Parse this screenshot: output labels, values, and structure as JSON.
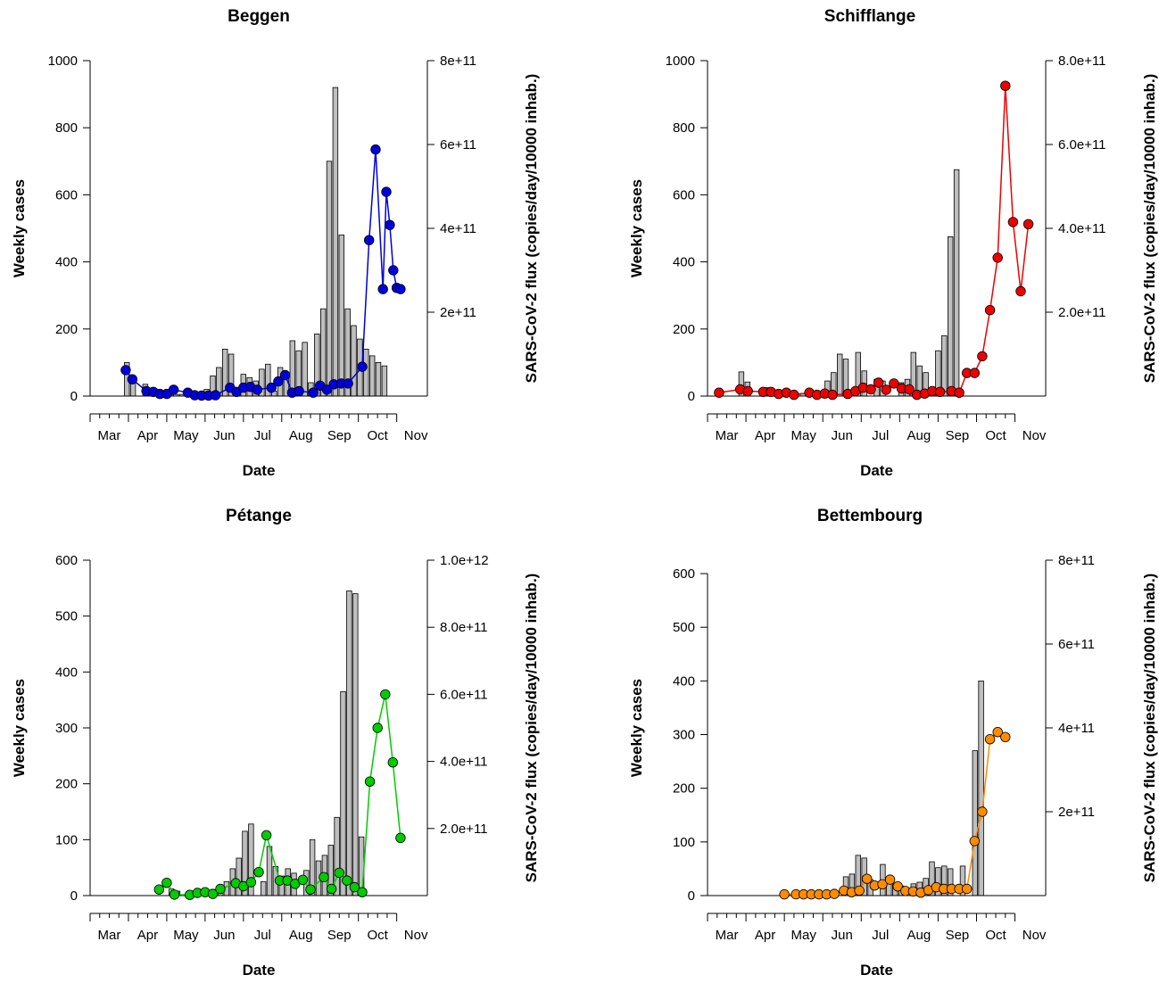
{
  "chart_data": [
    {
      "type": "bar",
      "title": "Beggen",
      "xlabel": "Date",
      "ylabel": "Weekly cases",
      "y2label": "SARS-CoV-2 flux (copies/day/10000 inhab.)",
      "xlim": [
        0,
        8.8
      ],
      "x_ticks": [
        "Mar",
        "Apr",
        "May",
        "Jun",
        "Jul",
        "Aug",
        "Sep",
        "Oct",
        "Nov"
      ],
      "ylim": [
        0,
        1000
      ],
      "y_ticks": [
        0,
        200,
        400,
        600,
        800,
        1000
      ],
      "y2lim": [
        0,
        800000000000.0
      ],
      "y2_ticks": [
        200000000000.0,
        400000000000.0,
        600000000000.0,
        800000000000.0
      ],
      "y2_tick_labels": [
        "2e+11",
        "4e+11",
        "6e+11",
        "8e+11"
      ],
      "bar_color": "#bebebe",
      "line_color": "#0000dd",
      "bars": {
        "name": "Weekly cases",
        "x": [
          0.96,
          1.12,
          1.44,
          1.6,
          1.76,
          1.92,
          2.08,
          2.24,
          2.4,
          2.56,
          2.72,
          2.88,
          3.04,
          3.2,
          3.36,
          3.52,
          3.68,
          3.84,
          4.0,
          4.16,
          4.32,
          4.48,
          4.64,
          4.8,
          4.96,
          5.12,
          5.28,
          5.44,
          5.6,
          5.76,
          5.92,
          6.08,
          6.24,
          6.4,
          6.56,
          6.72,
          6.88,
          7.04,
          7.2,
          7.36,
          7.52,
          7.68
        ],
        "values": [
          100,
          45,
          35,
          20,
          10,
          10,
          15,
          5,
          5,
          5,
          5,
          5,
          20,
          60,
          85,
          140,
          125,
          20,
          65,
          55,
          45,
          80,
          95,
          15,
          85,
          70,
          165,
          135,
          160,
          40,
          185,
          260,
          700,
          920,
          480,
          260,
          210,
          170,
          140,
          120,
          100,
          90
        ]
      },
      "series": [
        {
          "name": "SARS-CoV-2 flux",
          "x": [
            0.93,
            1.1,
            1.47,
            1.65,
            1.82,
            2.0,
            2.18,
            2.55,
            2.73,
            2.91,
            3.09,
            3.27,
            3.65,
            3.82,
            4.0,
            4.18,
            4.36,
            4.73,
            4.91,
            5.09,
            5.27,
            5.45,
            5.82,
            6.0,
            6.18,
            6.36,
            6.55,
            6.73,
            7.1,
            7.28,
            7.45,
            7.64,
            7.73,
            7.82,
            7.91,
            8.0,
            8.1
          ],
          "values": [
            62000000000.0,
            40000000000.0,
            12000000000.0,
            10000000000.0,
            5000000000.0,
            5000000000.0,
            15000000000.0,
            8000000000.0,
            2000000000.0,
            1000000000.0,
            1000000000.0,
            2000000000.0,
            20000000000.0,
            10000000000.0,
            20000000000.0,
            22000000000.0,
            15000000000.0,
            20000000000.0,
            35000000000.0,
            50000000000.0,
            8000000000.0,
            12000000000.0,
            8000000000.0,
            25000000000.0,
            15000000000.0,
            28000000000.0,
            30000000000.0,
            30000000000.0,
            70000000000.0,
            372000000000.0,
            588000000000.0,
            255000000000.0,
            487000000000.0,
            408000000000.0,
            300000000000.0,
            258000000000.0,
            255000000000.0
          ]
        }
      ]
    },
    {
      "type": "bar",
      "title": "Schifflange",
      "xlabel": "Date",
      "ylabel": "Weekly cases",
      "y2label": "SARS-CoV-2 flux (copies/day/10000 inhab.)",
      "xlim": [
        0,
        8.8
      ],
      "x_ticks": [
        "Mar",
        "Apr",
        "May",
        "Jun",
        "Jul",
        "Aug",
        "Sep",
        "Oct",
        "Nov"
      ],
      "ylim": [
        0,
        1000
      ],
      "y_ticks": [
        0,
        200,
        400,
        600,
        800,
        1000
      ],
      "y2lim": [
        0,
        800000000000.0
      ],
      "y2_ticks": [
        200000000000.0,
        400000000000.0,
        600000000000.0,
        800000000000.0
      ],
      "y2_tick_labels": [
        "2.0e+11",
        "4.0e+11",
        "6.0e+11",
        "8.0e+11"
      ],
      "bar_color": "#bebebe",
      "line_color": "#ee0000",
      "bars": {
        "name": "Weekly cases",
        "x": [
          0.88,
          1.04,
          1.52,
          1.68,
          2.16,
          2.48,
          3.12,
          3.28,
          3.44,
          3.6,
          3.92,
          4.08,
          4.4,
          4.56,
          5.04,
          5.2,
          5.36,
          5.52,
          5.68,
          6.0,
          6.16,
          6.32,
          6.48
        ],
        "values": [
          72,
          42,
          25,
          18,
          10,
          8,
          45,
          70,
          125,
          110,
          130,
          75,
          50,
          45,
          40,
          50,
          130,
          90,
          70,
          135,
          180,
          475,
          675
        ]
      },
      "series": [
        {
          "name": "SARS-CoV-2 flux",
          "x": [
            0.3,
            0.85,
            1.05,
            1.45,
            1.65,
            1.85,
            2.05,
            2.25,
            2.65,
            2.85,
            3.05,
            3.25,
            3.65,
            3.85,
            4.05,
            4.25,
            4.45,
            4.65,
            4.85,
            5.05,
            5.25,
            5.45,
            5.65,
            5.85,
            6.05,
            6.35,
            6.55,
            6.75,
            6.95,
            7.15,
            7.35,
            7.55,
            7.75,
            7.95,
            8.15,
            8.35
          ],
          "values": [
            8000000000.0,
            16000000000.0,
            12000000000.0,
            10000000000.0,
            10000000000.0,
            5000000000.0,
            8000000000.0,
            3000000000.0,
            8000000000.0,
            3000000000.0,
            6000000000.0,
            3000000000.0,
            5000000000.0,
            12000000000.0,
            20000000000.0,
            16000000000.0,
            32000000000.0,
            15000000000.0,
            30000000000.0,
            18000000000.0,
            16000000000.0,
            3000000000.0,
            6000000000.0,
            12000000000.0,
            10000000000.0,
            12000000000.0,
            8000000000.0,
            55000000000.0,
            55000000000.0,
            95000000000.0,
            205000000000.0,
            330000000000.0,
            740000000000.0,
            415000000000.0,
            250000000000.0,
            410000000000.0
          ]
        }
      ]
    },
    {
      "type": "bar",
      "title": "Pétange",
      "xlabel": "Date",
      "ylabel": "Weekly cases",
      "y2label": "SARS-CoV-2 flux (copies/day/10000 inhab.)",
      "xlim": [
        0,
        8.8
      ],
      "x_ticks": [
        "Mar",
        "Apr",
        "May",
        "Jun",
        "Jul",
        "Aug",
        "Sep",
        "Oct",
        "Nov"
      ],
      "ylim": [
        0,
        600
      ],
      "y_ticks": [
        0,
        100,
        200,
        300,
        400,
        500,
        600
      ],
      "y2lim": [
        0,
        1000000000000.0
      ],
      "y2_ticks": [
        200000000000.0,
        400000000000.0,
        600000000000.0,
        800000000000.0,
        1000000000000.0
      ],
      "y2_tick_labels": [
        "2.0e+11",
        "4.0e+11",
        "6.0e+11",
        "8.0e+11",
        "1.0e+12"
      ],
      "bar_color": "#bebebe",
      "line_color": "#00cc00",
      "bars": {
        "name": "Weekly cases",
        "x": [
          2.12,
          2.28,
          3.4,
          3.56,
          3.72,
          3.88,
          4.04,
          4.2,
          4.52,
          4.68,
          4.84,
          5.0,
          5.16,
          5.32,
          5.64,
          5.8,
          5.96,
          6.12,
          6.28,
          6.44,
          6.6,
          6.76,
          6.92,
          7.08
        ],
        "values": [
          12,
          8,
          15,
          25,
          48,
          67,
          115,
          128,
          25,
          88,
          52,
          35,
          48,
          40,
          45,
          100,
          62,
          72,
          90,
          140,
          365,
          545,
          540,
          105
        ]
      },
      "series": [
        {
          "name": "SARS-CoV-2 flux",
          "x": [
            1.8,
            2.0,
            2.2,
            2.6,
            2.8,
            3.0,
            3.2,
            3.4,
            3.8,
            4.0,
            4.2,
            4.4,
            4.6,
            4.95,
            5.15,
            5.35,
            5.55,
            5.75,
            6.1,
            6.3,
            6.5,
            6.7,
            6.9,
            7.1,
            7.3,
            7.5,
            7.7,
            7.9,
            8.1
          ],
          "values": [
            18000000000.0,
            38000000000.0,
            3000000000.0,
            2000000000.0,
            8000000000.0,
            10000000000.0,
            5000000000.0,
            20000000000.0,
            37000000000.0,
            28000000000.0,
            40000000000.0,
            70000000000.0,
            180000000000.0,
            45000000000.0,
            45000000000.0,
            35000000000.0,
            47000000000.0,
            18000000000.0,
            55000000000.0,
            20000000000.0,
            68000000000.0,
            45000000000.0,
            25000000000.0,
            10000000000.0,
            340000000000.0,
            500000000000.0,
            600000000000.0,
            397000000000.0,
            172000000000.0
          ]
        }
      ]
    },
    {
      "type": "bar",
      "title": "Bettembourg",
      "xlabel": "Date",
      "ylabel": "Weekly cases",
      "y2label": "SARS-CoV-2 flux (copies/day/10000 inhab.)",
      "xlim": [
        0,
        8.8
      ],
      "x_ticks": [
        "Mar",
        "Apr",
        "May",
        "Jun",
        "Jul",
        "Aug",
        "Sep",
        "Oct",
        "Nov"
      ],
      "ylim": [
        0,
        625
      ],
      "y_ticks": [
        0,
        100,
        200,
        300,
        400,
        500,
        600
      ],
      "y2lim": [
        0,
        800000000000.0
      ],
      "y2_ticks": [
        200000000000.0,
        400000000000.0,
        600000000000.0,
        800000000000.0
      ],
      "y2_tick_labels": [
        "2e+11",
        "4e+11",
        "6e+11",
        "8e+11"
      ],
      "bar_color": "#bebebe",
      "line_color": "#ff8c00",
      "bars": {
        "name": "Weekly cases",
        "x": [
          3.6,
          3.76,
          3.92,
          4.08,
          4.24,
          4.56,
          4.72,
          4.88,
          5.04,
          5.36,
          5.52,
          5.68,
          5.84,
          6.0,
          6.16,
          6.32,
          6.64,
          6.96,
          7.12
        ],
        "values": [
          35,
          40,
          75,
          70,
          30,
          58,
          30,
          22,
          18,
          22,
          25,
          32,
          63,
          52,
          55,
          50,
          55,
          270,
          400
        ]
      },
      "series": [
        {
          "name": "SARS-CoV-2 flux",
          "x": [
            2.0,
            2.3,
            2.5,
            2.7,
            2.9,
            3.1,
            3.3,
            3.55,
            3.75,
            3.95,
            4.15,
            4.35,
            4.55,
            4.75,
            4.95,
            5.15,
            5.35,
            5.55,
            5.75,
            5.95,
            6.15,
            6.35,
            6.55,
            6.75,
            6.95,
            7.15,
            7.35,
            7.55,
            7.75
          ],
          "values": [
            3000000000.0,
            3000000000.0,
            3000000000.0,
            3000000000.0,
            3000000000.0,
            3000000000.0,
            4000000000.0,
            12000000000.0,
            8000000000.0,
            12000000000.0,
            40000000000.0,
            24000000000.0,
            27000000000.0,
            38000000000.0,
            22000000000.0,
            11000000000.0,
            10000000000.0,
            7000000000.0,
            13000000000.0,
            20000000000.0,
            16000000000.0,
            16000000000.0,
            16000000000.0,
            16000000000.0,
            130000000000.0,
            200000000000.0,
            373000000000.0,
            390000000000.0,
            378000000000.0
          ]
        }
      ]
    }
  ]
}
